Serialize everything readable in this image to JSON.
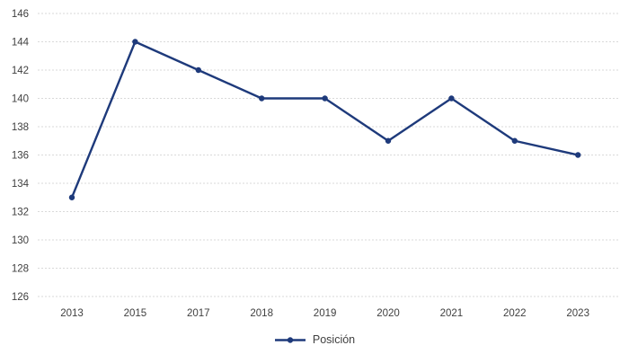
{
  "chart_data": {
    "type": "line",
    "title": "",
    "xlabel": "",
    "ylabel": "",
    "categories": [
      "2013",
      "2015",
      "2017",
      "2018",
      "2019",
      "2020",
      "2021",
      "2022",
      "2023"
    ],
    "series": [
      {
        "name": "Posición",
        "values": [
          133,
          144,
          142,
          140,
          140,
          137,
          140,
          137,
          136
        ],
        "color": "#1e3a7b",
        "marker": "circle"
      }
    ],
    "ylim": [
      126,
      146
    ],
    "ytick_step": 2,
    "yticks": [
      126,
      128,
      130,
      132,
      134,
      136,
      138,
      140,
      142,
      144,
      146
    ],
    "grid": "horizontal-dotted",
    "grid_color": "#d9d9d9",
    "tick_label_color": "#404040",
    "legend_position": "bottom-center"
  }
}
